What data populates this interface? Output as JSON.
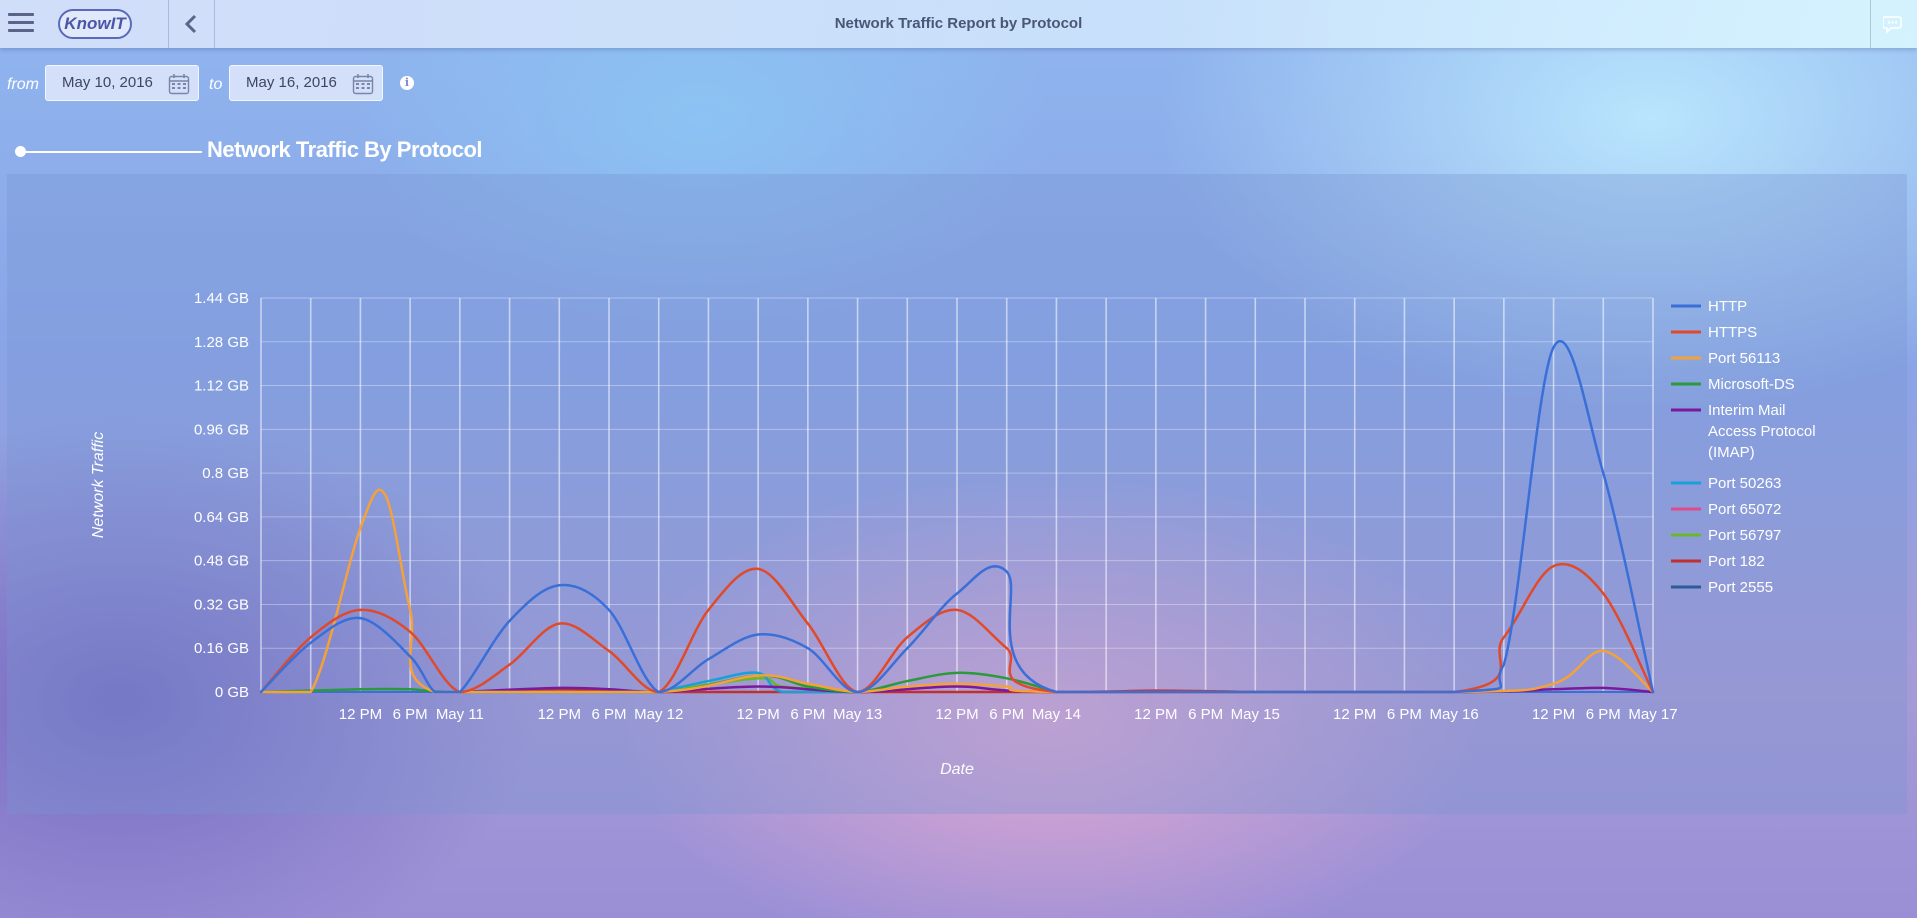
{
  "header": {
    "title": "Network Traffic Report by Protocol",
    "logo_text": "KnowIT",
    "menu_icon": "hamburger-icon",
    "back_icon": "chevron-left-icon",
    "chat_icon": "chat-bubbles-icon"
  },
  "filters": {
    "from_label": "from",
    "to_label": "to",
    "from_date": "May 10, 2016",
    "to_date": "May 16, 2016",
    "calendar_icon": "calendar-icon",
    "info_icon": "info-icon"
  },
  "section": {
    "title": "Network Traffic By Protocol"
  },
  "chart_data": {
    "type": "line",
    "xlabel": "Date",
    "ylabel": "Network Traffic",
    "ylim": [
      0,
      1.44
    ],
    "y_unit": "GB",
    "y_ticks": [
      "0 GB",
      "0.16 GB",
      "0.32 GB",
      "0.48 GB",
      "0.64 GB",
      "0.8 GB",
      "0.96 GB",
      "1.12 GB",
      "1.28 GB",
      "1.44 GB"
    ],
    "x_range": [
      "2016-05-10 00:00",
      "2016-05-17 00:00"
    ],
    "x_tick_labels": [
      {
        "t": "2016-05-10 12:00",
        "label": "12 PM"
      },
      {
        "t": "2016-05-10 18:00",
        "label": "6 PM"
      },
      {
        "t": "2016-05-11 00:00",
        "label": "May 11"
      },
      {
        "t": "2016-05-11 12:00",
        "label": "12 PM"
      },
      {
        "t": "2016-05-11 18:00",
        "label": "6 PM"
      },
      {
        "t": "2016-05-12 00:00",
        "label": "May 12"
      },
      {
        "t": "2016-05-12 12:00",
        "label": "12 PM"
      },
      {
        "t": "2016-05-12 18:00",
        "label": "6 PM"
      },
      {
        "t": "2016-05-13 00:00",
        "label": "May 13"
      },
      {
        "t": "2016-05-13 12:00",
        "label": "12 PM"
      },
      {
        "t": "2016-05-13 18:00",
        "label": "6 PM"
      },
      {
        "t": "2016-05-14 00:00",
        "label": "May 14"
      },
      {
        "t": "2016-05-14 12:00",
        "label": "12 PM"
      },
      {
        "t": "2016-05-14 18:00",
        "label": "6 PM"
      },
      {
        "t": "2016-05-15 00:00",
        "label": "May 15"
      },
      {
        "t": "2016-05-15 12:00",
        "label": "12 PM"
      },
      {
        "t": "2016-05-15 18:00",
        "label": "6 PM"
      },
      {
        "t": "2016-05-16 00:00",
        "label": "May 16"
      },
      {
        "t": "2016-05-16 12:00",
        "label": "12 PM"
      },
      {
        "t": "2016-05-16 18:00",
        "label": "6 PM"
      },
      {
        "t": "2016-05-17 00:00",
        "label": "May 17"
      }
    ],
    "grid": true,
    "legend_position": "right",
    "series": [
      {
        "name": "HTTP",
        "color": "#3a6fd8",
        "points": [
          [
            "2016-05-10 00:00",
            0
          ],
          [
            "2016-05-10 06:00",
            0.18
          ],
          [
            "2016-05-10 12:00",
            0.27
          ],
          [
            "2016-05-10 18:00",
            0.13
          ],
          [
            "2016-05-10 21:00",
            0
          ],
          [
            "2016-05-11 00:00",
            0
          ],
          [
            "2016-05-11 06:00",
            0.26
          ],
          [
            "2016-05-11 12:00",
            0.39
          ],
          [
            "2016-05-11 18:00",
            0.3
          ],
          [
            "2016-05-12 00:00",
            0
          ],
          [
            "2016-05-12 06:00",
            0.12
          ],
          [
            "2016-05-12 12:00",
            0.21
          ],
          [
            "2016-05-12 18:00",
            0.16
          ],
          [
            "2016-05-13 00:00",
            0
          ],
          [
            "2016-05-13 06:00",
            0.16
          ],
          [
            "2016-05-13 12:00",
            0.36
          ],
          [
            "2016-05-13 18:00",
            0.44
          ],
          [
            "2016-05-14 00:00",
            0
          ],
          [
            "2016-05-16 00:00",
            0
          ],
          [
            "2016-05-16 06:00",
            0.1
          ],
          [
            "2016-05-16 12:00",
            1.26
          ],
          [
            "2016-05-16 18:00",
            0.8
          ],
          [
            "2016-05-17 00:00",
            0
          ]
        ]
      },
      {
        "name": "HTTPS",
        "color": "#e04a2a",
        "points": [
          [
            "2016-05-10 00:00",
            0
          ],
          [
            "2016-05-10 06:00",
            0.2
          ],
          [
            "2016-05-10 12:00",
            0.3
          ],
          [
            "2016-05-10 18:00",
            0.22
          ],
          [
            "2016-05-11 00:00",
            0
          ],
          [
            "2016-05-11 06:00",
            0.1
          ],
          [
            "2016-05-11 12:00",
            0.25
          ],
          [
            "2016-05-11 18:00",
            0.15
          ],
          [
            "2016-05-12 00:00",
            0
          ],
          [
            "2016-05-12 06:00",
            0.3
          ],
          [
            "2016-05-12 12:00",
            0.45
          ],
          [
            "2016-05-12 18:00",
            0.25
          ],
          [
            "2016-05-13 00:00",
            0
          ],
          [
            "2016-05-13 06:00",
            0.2
          ],
          [
            "2016-05-13 12:00",
            0.3
          ],
          [
            "2016-05-13 18:00",
            0.16
          ],
          [
            "2016-05-14 00:00",
            0
          ],
          [
            "2016-05-16 00:00",
            0
          ],
          [
            "2016-05-16 06:00",
            0.2
          ],
          [
            "2016-05-16 12:00",
            0.46
          ],
          [
            "2016-05-16 18:00",
            0.36
          ],
          [
            "2016-05-17 00:00",
            0
          ]
        ]
      },
      {
        "name": "Port 56113",
        "color": "#f5a13a",
        "points": [
          [
            "2016-05-10 00:00",
            0
          ],
          [
            "2016-05-10 06:00",
            0
          ],
          [
            "2016-05-10 12:00",
            0.6
          ],
          [
            "2016-05-10 15:00",
            0.72
          ],
          [
            "2016-05-10 18:00",
            0.3
          ],
          [
            "2016-05-10 21:00",
            0
          ],
          [
            "2016-05-12 00:00",
            0
          ],
          [
            "2016-05-12 12:00",
            0.06
          ],
          [
            "2016-05-12 18:00",
            0.03
          ],
          [
            "2016-05-13 00:00",
            0
          ],
          [
            "2016-05-13 06:00",
            0.02
          ],
          [
            "2016-05-13 12:00",
            0.03
          ],
          [
            "2016-05-13 18:00",
            0.02
          ],
          [
            "2016-05-14 00:00",
            0
          ],
          [
            "2016-05-16 00:00",
            0
          ],
          [
            "2016-05-16 12:00",
            0.03
          ],
          [
            "2016-05-16 18:00",
            0.15
          ],
          [
            "2016-05-17 00:00",
            0
          ]
        ]
      },
      {
        "name": "Microsoft-DS",
        "color": "#2a9a3a",
        "points": [
          [
            "2016-05-10 00:00",
            0
          ],
          [
            "2016-05-10 12:00",
            0.01
          ],
          [
            "2016-05-10 18:00",
            0.01
          ],
          [
            "2016-05-11 00:00",
            0
          ],
          [
            "2016-05-12 00:00",
            0
          ],
          [
            "2016-05-12 12:00",
            0.06
          ],
          [
            "2016-05-12 18:00",
            0.02
          ],
          [
            "2016-05-13 00:00",
            0
          ],
          [
            "2016-05-13 06:00",
            0.04
          ],
          [
            "2016-05-13 12:00",
            0.07
          ],
          [
            "2016-05-13 18:00",
            0.05
          ],
          [
            "2016-05-14 00:00",
            0
          ]
        ]
      },
      {
        "name": "Interim Mail Access Protocol (IMAP)",
        "color": "#7a1a9a",
        "points": [
          [
            "2016-05-11 00:00",
            0
          ],
          [
            "2016-05-11 12:00",
            0.015
          ],
          [
            "2016-05-11 18:00",
            0.01
          ],
          [
            "2016-05-12 00:00",
            0
          ],
          [
            "2016-05-12 12:00",
            0.02
          ],
          [
            "2016-05-13 00:00",
            0
          ],
          [
            "2016-05-13 12:00",
            0.02
          ],
          [
            "2016-05-14 00:00",
            0
          ],
          [
            "2016-05-16 00:00",
            0
          ],
          [
            "2016-05-16 12:00",
            0.01
          ],
          [
            "2016-05-16 18:00",
            0.015
          ],
          [
            "2016-05-17 00:00",
            0
          ]
        ]
      },
      {
        "name": "Port 50263",
        "color": "#1aa0d8",
        "points": [
          [
            "2016-05-12 00:00",
            0
          ],
          [
            "2016-05-12 06:00",
            0.04
          ],
          [
            "2016-05-12 12:00",
            0.07
          ],
          [
            "2016-05-12 15:00",
            0
          ],
          [
            "2016-05-13 00:00",
            0
          ]
        ]
      },
      {
        "name": "Port 65072",
        "color": "#e04a8a",
        "points": []
      },
      {
        "name": "Port 56797",
        "color": "#6ab82a",
        "points": [
          [
            "2016-05-12 00:00",
            0
          ],
          [
            "2016-05-12 12:00",
            0.05
          ],
          [
            "2016-05-12 15:00",
            0.02
          ],
          [
            "2016-05-13 00:00",
            0
          ]
        ]
      },
      {
        "name": "Port 182",
        "color": "#c03030",
        "points": [
          [
            "2016-05-11 00:00",
            0
          ],
          [
            "2016-05-11 12:00",
            0.01
          ],
          [
            "2016-05-12 00:00",
            0
          ],
          [
            "2016-05-14 00:00",
            0
          ],
          [
            "2016-05-14 12:00",
            0.005
          ],
          [
            "2016-05-15 00:00",
            0
          ]
        ]
      },
      {
        "name": "Port 2555",
        "color": "#2e5a9a",
        "points": []
      }
    ]
  }
}
